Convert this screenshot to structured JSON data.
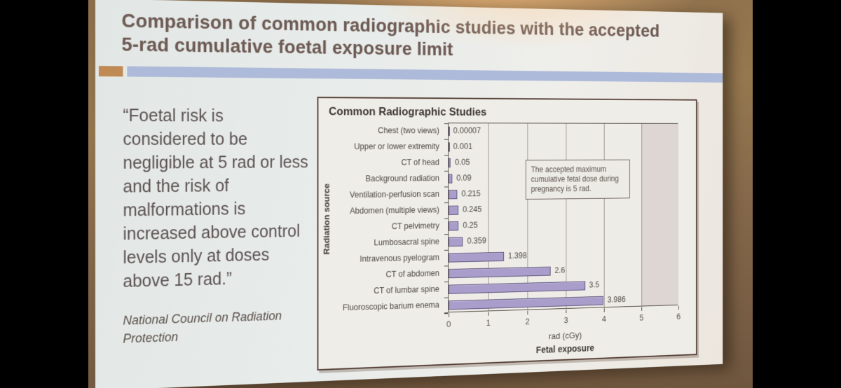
{
  "slide": {
    "title_lines": [
      "Comparison of common radiographic studies with the accepted",
      "5-rad cumulative foetal exposure limit"
    ],
    "quote_lines": [
      "“Foetal risk is",
      "considered to be",
      "negligible at 5 rad or less",
      "and the risk of",
      "malformations is",
      "increased above control",
      "levels only at doses",
      "above 15 rad.”"
    ],
    "attribution_lines": [
      "National Council on Radiation",
      "Protection"
    ],
    "accent_blue": "#adbad9",
    "accent_orange": "#c08a54"
  },
  "chart_data": {
    "type": "bar",
    "orientation": "horizontal",
    "title": "Common Radiographic Studies",
    "categories": [
      "Chest (two views)",
      "Upper or lower extremity",
      "CT of head",
      "Background radiation",
      "Ventilation-perfusion scan",
      "Abdomen (multiple views)",
      "CT pelvimetry",
      "Lumbosacral spine",
      "Intravenous pyelogram",
      "CT of abdomen",
      "CT of lumbar spine",
      "Fluoroscopic barium enema"
    ],
    "values": [
      7e-05,
      0.001,
      0.05,
      0.09,
      0.215,
      0.245,
      0.25,
      0.359,
      1.398,
      2.6,
      3.5,
      3.986
    ],
    "value_labels": [
      "0.00007",
      "0.001",
      "0.05",
      "0.09",
      "0.215",
      "0.245",
      "0.25",
      "0.359",
      "1.398",
      "2.6",
      "3.5",
      "3.986"
    ],
    "xlabel": "rad (cGy)",
    "xlabel2": "Fetal exposure",
    "ylabel": "Radiation source",
    "xlim": [
      0,
      6
    ],
    "xticks": [
      "0",
      "1",
      "2",
      "3",
      "4",
      "5",
      "6"
    ],
    "grid": true,
    "limit_band": {
      "from": 5,
      "to": 6,
      "color": "#ddd6d2"
    },
    "annotation": "The accepted maximum cumulative fetal dose during pregnancy is 5 rad.",
    "bar_color": "#a89dcb"
  }
}
